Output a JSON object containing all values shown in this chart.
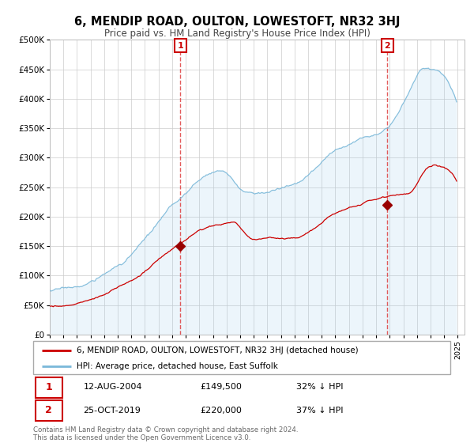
{
  "title": "6, MENDIP ROAD, OULTON, LOWESTOFT, NR32 3HJ",
  "subtitle": "Price paid vs. HM Land Registry's House Price Index (HPI)",
  "ylim": [
    0,
    500000
  ],
  "yticks": [
    0,
    50000,
    100000,
    150000,
    200000,
    250000,
    300000,
    350000,
    400000,
    450000,
    500000
  ],
  "ytick_labels": [
    "£0",
    "£50K",
    "£100K",
    "£150K",
    "£200K",
    "£250K",
    "£300K",
    "£350K",
    "£400K",
    "£450K",
    "£500K"
  ],
  "xlim_start": 1995.0,
  "xlim_end": 2025.5,
  "sale1_x": 2004.614,
  "sale1_y": 149500,
  "sale1_label": "1",
  "sale1_date": "12-AUG-2004",
  "sale1_price": "£149,500",
  "sale1_hpi": "32% ↓ HPI",
  "sale2_x": 2019.822,
  "sale2_y": 220000,
  "sale2_label": "2",
  "sale2_date": "25-OCT-2019",
  "sale2_price": "£220,000",
  "sale2_hpi": "37% ↓ HPI",
  "legend_red": "6, MENDIP ROAD, OULTON, LOWESTOFT, NR32 3HJ (detached house)",
  "legend_blue": "HPI: Average price, detached house, East Suffolk",
  "footer": "Contains HM Land Registry data © Crown copyright and database right 2024.\nThis data is licensed under the Open Government Licence v3.0.",
  "hpi_color": "#7ab8d9",
  "price_color": "#cc0000",
  "marker_color": "#990000"
}
